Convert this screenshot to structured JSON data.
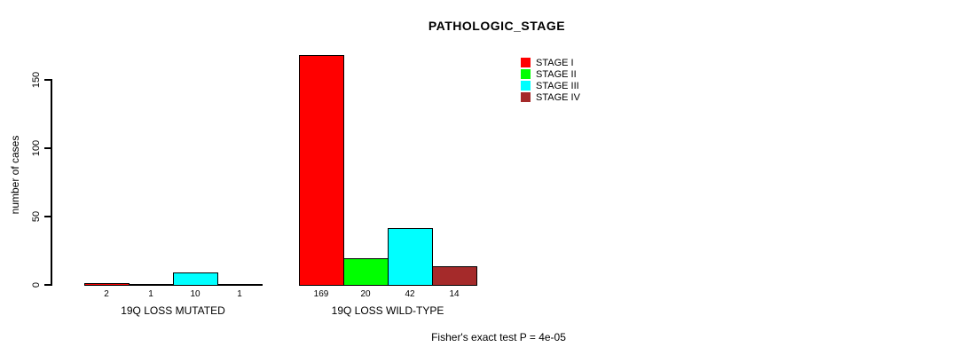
{
  "chart_data": {
    "type": "bar",
    "title": "PATHOLOGIC_STAGE",
    "ylabel": "number of cases",
    "xlabel": "",
    "annotation": "Fisher's exact test P = 4e-05",
    "categories": [
      "19Q LOSS MUTATED",
      "19Q LOSS WILD-TYPE"
    ],
    "series": [
      {
        "name": "STAGE I",
        "color": "#ff0000",
        "values": [
          2,
          169
        ]
      },
      {
        "name": "STAGE II",
        "color": "#00ff00",
        "values": [
          1,
          20
        ]
      },
      {
        "name": "STAGE III",
        "color": "#00ffff",
        "values": [
          10,
          42
        ]
      },
      {
        "name": "STAGE IV",
        "color": "#a52a2a",
        "values": [
          1,
          14
        ]
      }
    ],
    "bar_value_labels": [
      [
        "2",
        "1",
        "10",
        "1"
      ],
      [
        "169",
        "20",
        "42",
        "14"
      ]
    ],
    "yticks": [
      0,
      50,
      100,
      150
    ],
    "ylim": [
      0,
      175
    ],
    "grid": false,
    "legend_position": "top-right",
    "colors": {
      "text": "#000000",
      "background": "#ffffff"
    }
  }
}
